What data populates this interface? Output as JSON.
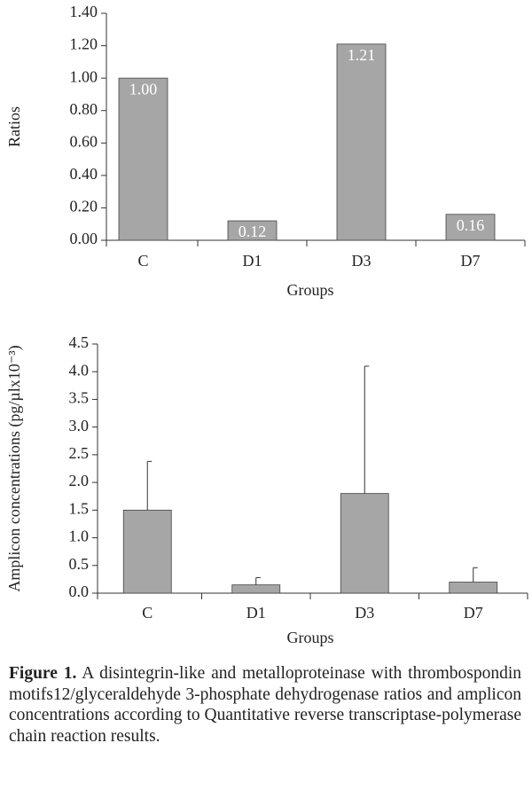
{
  "chart_data": [
    {
      "type": "bar",
      "xlabel": "Groups",
      "ylabel": "Ratios",
      "categories": [
        "C",
        "D1",
        "D3",
        "D7"
      ],
      "values": [
        1.0,
        0.12,
        1.21,
        0.16
      ],
      "value_labels": [
        "1.00",
        "0.12",
        "1.21",
        "0.16"
      ],
      "color": "#a6a6a6",
      "ylim": [
        0,
        1.4
      ],
      "yticks": [
        {
          "value": 0,
          "label": "0.00"
        },
        {
          "value": 0.2,
          "label": "0.20"
        },
        {
          "value": 0.4,
          "label": "0.40"
        },
        {
          "value": 0.6,
          "label": "0.60"
        },
        {
          "value": 0.8,
          "label": "0.80"
        },
        {
          "value": 1.0,
          "label": "1.00"
        },
        {
          "value": 1.2,
          "label": "1.20"
        },
        {
          "value": 1.4,
          "label": "1.40"
        }
      ],
      "grid": false
    },
    {
      "type": "bar",
      "xlabel": "Groups",
      "ylabel": "Amplicon concentrations (pg/µlx10⁻³)",
      "categories": [
        "C",
        "D1",
        "D3",
        "D7"
      ],
      "values": [
        1.5,
        0.15,
        1.8,
        0.2
      ],
      "errors": [
        0.88,
        0.13,
        2.3,
        0.26
      ],
      "color": "#a6a6a6",
      "ylim": [
        0,
        4.5
      ],
      "yticks": [
        {
          "value": 0,
          "label": "0.0"
        },
        {
          "value": 0.5,
          "label": "0.5"
        },
        {
          "value": 1.0,
          "label": "1.0"
        },
        {
          "value": 1.5,
          "label": "1.5"
        },
        {
          "value": 2.0,
          "label": "2.0"
        },
        {
          "value": 2.5,
          "label": "2.5"
        },
        {
          "value": 3.0,
          "label": "3.0"
        },
        {
          "value": 3.5,
          "label": "3.5"
        },
        {
          "value": 4.0,
          "label": "4.0"
        },
        {
          "value": 4.5,
          "label": "4.5"
        }
      ],
      "grid": false
    }
  ],
  "caption": {
    "label": "Figure 1.",
    "text": "A disintegrin-like and metalloproteinase with thrombospondin motifs12/glyceraldehyde 3-phosphate dehydrogenase ratios and amplicon concentrations according to Quantitative reverse transcriptase-polymerase chain reaction results."
  }
}
